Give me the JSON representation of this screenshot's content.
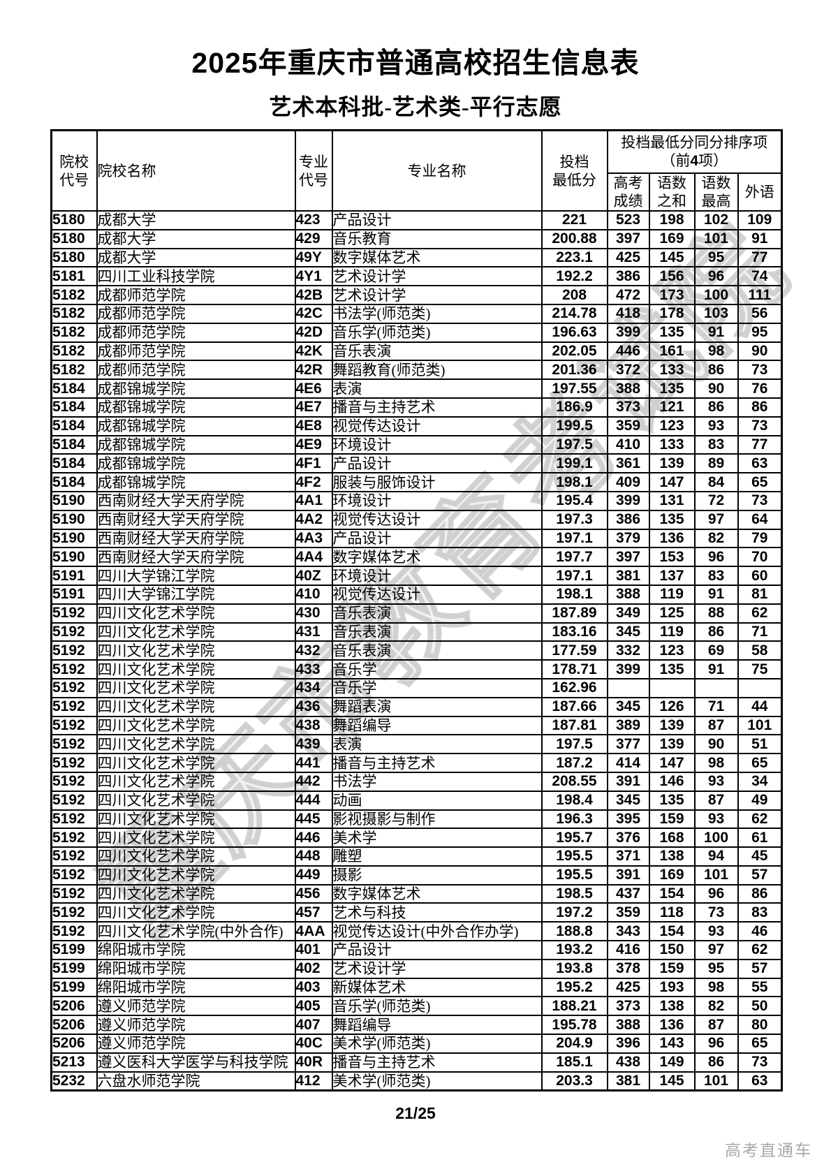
{
  "page": {
    "title_year": "2025",
    "title_rest": "年重庆市普通高校招生信息表",
    "subtitle": "艺术本科批-艺术类-平行志愿",
    "page_number": "21/25",
    "diagonal_watermark": "重庆市教育考试院",
    "brand_watermark": "高考直通车",
    "text_color": "#000000",
    "watermark_color": "#c4c4c4"
  },
  "table": {
    "headers": {
      "college_code": "院校\n代号",
      "college_name": "院校名称",
      "major_code": "专业\n代号",
      "major_name": "专业名称",
      "min_score": "投档\n最低分",
      "group_title": "投档最低分同分排序项",
      "group_sub_prefix": "（前",
      "group_sub_num": "4",
      "group_sub_suffix": "项）",
      "gaokao_score": "高考\n成绩",
      "chinese_math_sum": "语数\n之和",
      "chinese_math_max": "语数\n最高",
      "foreign_language": "外语"
    },
    "rows": [
      [
        "5180",
        "成都大学",
        "423",
        "产品设计",
        "221",
        "523",
        "198",
        "102",
        "109"
      ],
      [
        "5180",
        "成都大学",
        "429",
        "音乐教育",
        "200.88",
        "397",
        "169",
        "101",
        "91"
      ],
      [
        "5180",
        "成都大学",
        "49Y",
        "数字媒体艺术",
        "223.1",
        "425",
        "145",
        "95",
        "77"
      ],
      [
        "5181",
        "四川工业科技学院",
        "4Y1",
        "艺术设计学",
        "192.2",
        "386",
        "156",
        "96",
        "74"
      ],
      [
        "5182",
        "成都师范学院",
        "42B",
        "艺术设计学",
        "208",
        "472",
        "173",
        "100",
        "111"
      ],
      [
        "5182",
        "成都师范学院",
        "42C",
        "书法学(师范类)",
        "214.78",
        "418",
        "178",
        "103",
        "56"
      ],
      [
        "5182",
        "成都师范学院",
        "42D",
        "音乐学(师范类)",
        "196.63",
        "399",
        "135",
        "91",
        "95"
      ],
      [
        "5182",
        "成都师范学院",
        "42K",
        "音乐表演",
        "202.05",
        "446",
        "161",
        "98",
        "90"
      ],
      [
        "5182",
        "成都师范学院",
        "42R",
        "舞蹈教育(师范类)",
        "201.36",
        "372",
        "133",
        "86",
        "73"
      ],
      [
        "5184",
        "成都锦城学院",
        "4E6",
        "表演",
        "197.55",
        "388",
        "135",
        "90",
        "76"
      ],
      [
        "5184",
        "成都锦城学院",
        "4E7",
        "播音与主持艺术",
        "186.9",
        "373",
        "121",
        "86",
        "86"
      ],
      [
        "5184",
        "成都锦城学院",
        "4E8",
        "视觉传达设计",
        "199.5",
        "359",
        "123",
        "93",
        "73"
      ],
      [
        "5184",
        "成都锦城学院",
        "4E9",
        "环境设计",
        "197.5",
        "410",
        "133",
        "83",
        "77"
      ],
      [
        "5184",
        "成都锦城学院",
        "4F1",
        "产品设计",
        "199.1",
        "361",
        "139",
        "89",
        "63"
      ],
      [
        "5184",
        "成都锦城学院",
        "4F2",
        "服装与服饰设计",
        "198.1",
        "409",
        "147",
        "84",
        "65"
      ],
      [
        "5190",
        "西南财经大学天府学院",
        "4A1",
        "环境设计",
        "195.4",
        "399",
        "131",
        "72",
        "73"
      ],
      [
        "5190",
        "西南财经大学天府学院",
        "4A2",
        "视觉传达设计",
        "197.3",
        "386",
        "135",
        "97",
        "64"
      ],
      [
        "5190",
        "西南财经大学天府学院",
        "4A3",
        "产品设计",
        "197.1",
        "379",
        "136",
        "82",
        "79"
      ],
      [
        "5190",
        "西南财经大学天府学院",
        "4A4",
        "数字媒体艺术",
        "197.7",
        "397",
        "153",
        "96",
        "70"
      ],
      [
        "5191",
        "四川大学锦江学院",
        "40Z",
        "环境设计",
        "197.1",
        "381",
        "137",
        "83",
        "60"
      ],
      [
        "5191",
        "四川大学锦江学院",
        "410",
        "视觉传达设计",
        "198.1",
        "388",
        "119",
        "91",
        "81"
      ],
      [
        "5192",
        "四川文化艺术学院",
        "430",
        "音乐表演",
        "187.89",
        "349",
        "125",
        "88",
        "62"
      ],
      [
        "5192",
        "四川文化艺术学院",
        "431",
        "音乐表演",
        "183.16",
        "345",
        "119",
        "86",
        "71"
      ],
      [
        "5192",
        "四川文化艺术学院",
        "432",
        "音乐表演",
        "177.59",
        "332",
        "123",
        "69",
        "58"
      ],
      [
        "5192",
        "四川文化艺术学院",
        "433",
        "音乐学",
        "178.71",
        "399",
        "135",
        "91",
        "75"
      ],
      [
        "5192",
        "四川文化艺术学院",
        "434",
        "音乐学",
        "162.96",
        "",
        "",
        "",
        ""
      ],
      [
        "5192",
        "四川文化艺术学院",
        "436",
        "舞蹈表演",
        "187.66",
        "345",
        "126",
        "71",
        "44"
      ],
      [
        "5192",
        "四川文化艺术学院",
        "438",
        "舞蹈编导",
        "187.81",
        "389",
        "139",
        "87",
        "101"
      ],
      [
        "5192",
        "四川文化艺术学院",
        "439",
        "表演",
        "197.5",
        "377",
        "139",
        "90",
        "51"
      ],
      [
        "5192",
        "四川文化艺术学院",
        "441",
        "播音与主持艺术",
        "187.2",
        "414",
        "147",
        "98",
        "65"
      ],
      [
        "5192",
        "四川文化艺术学院",
        "442",
        "书法学",
        "208.55",
        "391",
        "146",
        "93",
        "34"
      ],
      [
        "5192",
        "四川文化艺术学院",
        "444",
        "动画",
        "198.4",
        "345",
        "135",
        "87",
        "49"
      ],
      [
        "5192",
        "四川文化艺术学院",
        "445",
        "影视摄影与制作",
        "196.3",
        "395",
        "159",
        "93",
        "62"
      ],
      [
        "5192",
        "四川文化艺术学院",
        "446",
        "美术学",
        "195.7",
        "376",
        "168",
        "100",
        "61"
      ],
      [
        "5192",
        "四川文化艺术学院",
        "448",
        "雕塑",
        "195.5",
        "371",
        "138",
        "94",
        "45"
      ],
      [
        "5192",
        "四川文化艺术学院",
        "449",
        "摄影",
        "195.5",
        "391",
        "169",
        "101",
        "57"
      ],
      [
        "5192",
        "四川文化艺术学院",
        "456",
        "数字媒体艺术",
        "198.5",
        "437",
        "154",
        "96",
        "86"
      ],
      [
        "5192",
        "四川文化艺术学院",
        "457",
        "艺术与科技",
        "197.2",
        "359",
        "118",
        "73",
        "83"
      ],
      [
        "5192",
        "四川文化艺术学院(中外合作)",
        "4AA",
        "视觉传达设计(中外合作办学)",
        "188.8",
        "343",
        "154",
        "93",
        "46"
      ],
      [
        "5199",
        "绵阳城市学院",
        "401",
        "产品设计",
        "193.2",
        "416",
        "150",
        "97",
        "62"
      ],
      [
        "5199",
        "绵阳城市学院",
        "402",
        "艺术设计学",
        "193.8",
        "378",
        "159",
        "95",
        "57"
      ],
      [
        "5199",
        "绵阳城市学院",
        "403",
        "新媒体艺术",
        "195.2",
        "425",
        "193",
        "98",
        "55"
      ],
      [
        "5206",
        "遵义师范学院",
        "405",
        "音乐学(师范类)",
        "188.21",
        "373",
        "138",
        "82",
        "50"
      ],
      [
        "5206",
        "遵义师范学院",
        "407",
        "舞蹈编导",
        "195.78",
        "388",
        "136",
        "87",
        "80"
      ],
      [
        "5206",
        "遵义师范学院",
        "40C",
        "美术学(师范类)",
        "204.9",
        "396",
        "143",
        "96",
        "65"
      ],
      [
        "5213",
        "遵义医科大学医学与科技学院",
        "40R",
        "播音与主持艺术",
        "185.1",
        "438",
        "149",
        "86",
        "73"
      ],
      [
        "5232",
        "六盘水师范学院",
        "412",
        "美术学(师范类)",
        "203.3",
        "381",
        "145",
        "101",
        "63"
      ]
    ]
  }
}
